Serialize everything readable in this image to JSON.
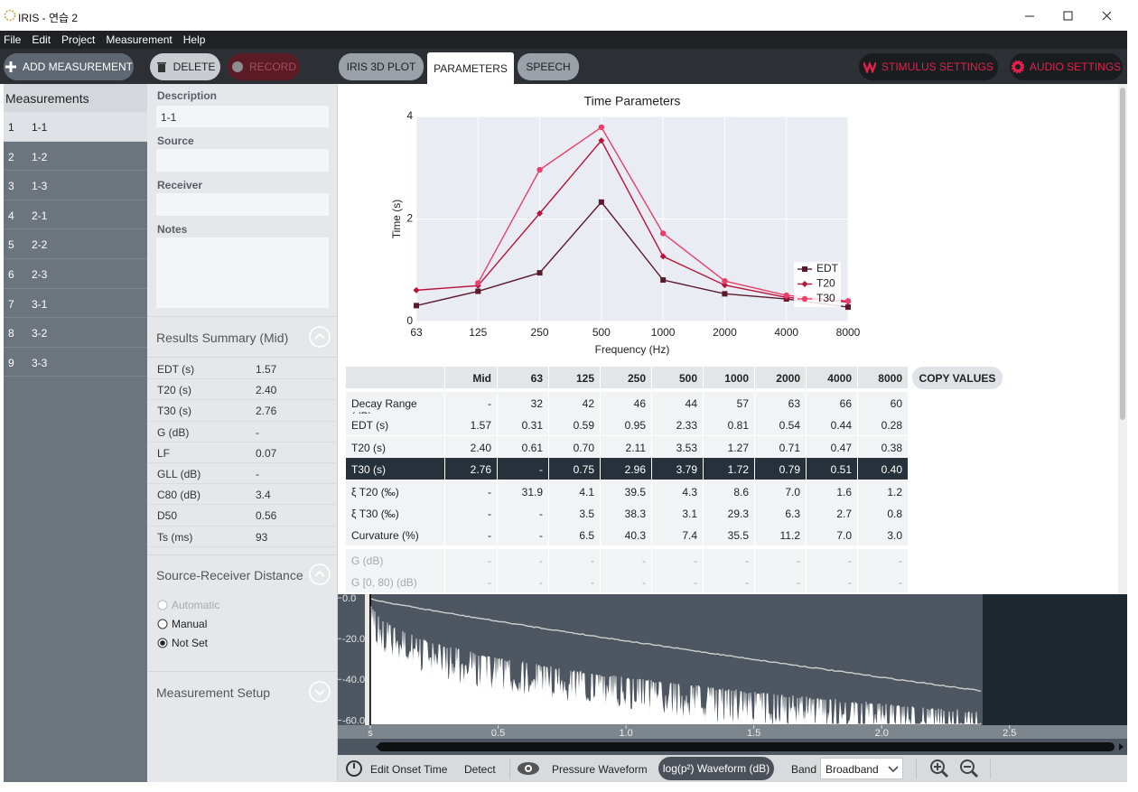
{
  "window": {
    "title": "IRIS - 연습 2"
  },
  "menu": [
    "File",
    "Edit",
    "Project",
    "Measurement",
    "Help"
  ],
  "toolbar": {
    "add": "ADD MEASUREMENT",
    "delete": "DELETE",
    "record": "RECORD",
    "tabs": [
      "IRIS 3D PLOT",
      "PARAMETERS",
      "SPEECH"
    ],
    "active_tab": 1,
    "stimulus": "STIMULUS SETTINGS",
    "audio": "AUDIO SETTINGS"
  },
  "measurements": {
    "heading": "Measurements",
    "selected": 0,
    "items": [
      [
        1,
        "1-1"
      ],
      [
        2,
        "1-2"
      ],
      [
        3,
        "1-3"
      ],
      [
        4,
        "2-1"
      ],
      [
        5,
        "2-2"
      ],
      [
        6,
        "2-3"
      ],
      [
        7,
        "3-1"
      ],
      [
        8,
        "3-2"
      ],
      [
        9,
        "3-3"
      ]
    ]
  },
  "details": {
    "fields": [
      {
        "label": "Description",
        "value": "1-1"
      },
      {
        "label": "Source"
      },
      {
        "label": "Receiver"
      },
      {
        "label": "Notes"
      }
    ]
  },
  "results_summary": {
    "title": "Results Summary (Mid)",
    "rows": [
      [
        "EDT (s)",
        "1.57"
      ],
      [
        "T20 (s)",
        "2.40"
      ],
      [
        "T30 (s)",
        "2.76"
      ],
      [
        "G (dB)",
        "-"
      ],
      [
        "LF",
        "0.07"
      ],
      [
        "GLL (dB)",
        "-"
      ],
      [
        "C80 (dB)",
        "3.4"
      ],
      [
        "D50",
        "0.56"
      ],
      [
        "Ts (ms)",
        "93"
      ]
    ]
  },
  "distance": {
    "title": "Source-Receiver Distance",
    "options": [
      "Automatic",
      "Manual",
      "Not Set"
    ],
    "disabled": [
      0
    ],
    "selected": 2
  },
  "setup": {
    "title": "Measurement Setup"
  },
  "chart_data": {
    "type": "line",
    "title": "Time Parameters",
    "x_label": "Frequency (Hz)",
    "y_label": "Time (s)",
    "categories": [
      "63",
      "125",
      "250",
      "500",
      "1000",
      "2000",
      "4000",
      "8000"
    ],
    "series": [
      {
        "name": "EDT",
        "color": "#5b1a2c",
        "marker": "square",
        "values": [
          0.31,
          0.59,
          0.95,
          2.33,
          0.81,
          0.54,
          0.44,
          0.28
        ]
      },
      {
        "name": "T20",
        "color": "#b8143a",
        "marker": "diamond",
        "values": [
          0.61,
          0.7,
          2.11,
          3.53,
          1.27,
          0.71,
          0.47,
          0.38
        ]
      },
      {
        "name": "T30",
        "color": "#e8406a",
        "marker": "circle",
        "values": [
          null,
          0.75,
          2.96,
          3.79,
          1.72,
          0.79,
          0.51,
          0.4
        ]
      }
    ],
    "ylim": [
      0,
      4
    ],
    "yticks": [
      0,
      2,
      4
    ],
    "grid": true,
    "legend": "lower-right"
  },
  "table": {
    "columns": [
      "Mid",
      "63",
      "125",
      "250",
      "500",
      "1000",
      "2000",
      "4000",
      "8000"
    ],
    "button": "COPY VALUES",
    "highlighted": 3,
    "dimmed": [
      7,
      8
    ],
    "rows": [
      [
        "Decay Range (dB)",
        "-",
        "32",
        "42",
        "46",
        "44",
        "57",
        "63",
        "66",
        "60"
      ],
      [
        "EDT (s)",
        "1.57",
        "0.31",
        "0.59",
        "0.95",
        "2.33",
        "0.81",
        "0.54",
        "0.44",
        "0.28"
      ],
      [
        "T20 (s)",
        "2.40",
        "0.61",
        "0.70",
        "2.11",
        "3.53",
        "1.27",
        "0.71",
        "0.47",
        "0.38"
      ],
      [
        "T30 (s)",
        "2.76",
        "-",
        "0.75",
        "2.96",
        "3.79",
        "1.72",
        "0.79",
        "0.51",
        "0.40"
      ],
      [
        "ξ T20 (‰)",
        "-",
        "31.9",
        "4.1",
        "39.5",
        "4.3",
        "8.6",
        "7.0",
        "1.6",
        "1.2"
      ],
      [
        "ξ T30 (‰)",
        "-",
        "-",
        "3.5",
        "38.3",
        "3.1",
        "29.3",
        "6.3",
        "2.7",
        "0.8"
      ],
      [
        "Curvature (%)",
        "-",
        "-",
        "6.5",
        "40.3",
        "7.4",
        "35.5",
        "11.2",
        "7.0",
        "3.0"
      ],
      [
        "G (dB)",
        "-",
        "-",
        "-",
        "-",
        "-",
        "-",
        "-",
        "-",
        "-"
      ],
      [
        "G [0, 80) (dB)",
        "-",
        "-",
        "-",
        "-",
        "-",
        "-",
        "-",
        "-",
        "-"
      ]
    ]
  },
  "waveform": {
    "xlim": [
      0,
      2.96
    ],
    "ylim": [
      -62,
      0
    ],
    "xticks": [
      {
        "value": 0,
        "label": "s"
      },
      {
        "value": 0.5,
        "label": "0.5"
      },
      {
        "value": 1.0,
        "label": "1.0"
      },
      {
        "value": 1.5,
        "label": "1.5"
      },
      {
        "value": 2.0,
        "label": "2.0"
      },
      {
        "value": 2.5,
        "label": "2.5"
      }
    ],
    "yticks": [
      {
        "value": 0,
        "label": "0.0"
      },
      {
        "value": -20,
        "label": "-20.0"
      },
      {
        "value": -40,
        "label": "-40.0"
      },
      {
        "value": -60,
        "label": "-60.0"
      }
    ]
  },
  "bottom_bar": {
    "onset": "Edit Onset Time",
    "detect": "Detect",
    "pressure": "Pressure Waveform",
    "log": "log(p²) Waveform (dB)",
    "band_label": "Band",
    "band": "Broadband"
  }
}
